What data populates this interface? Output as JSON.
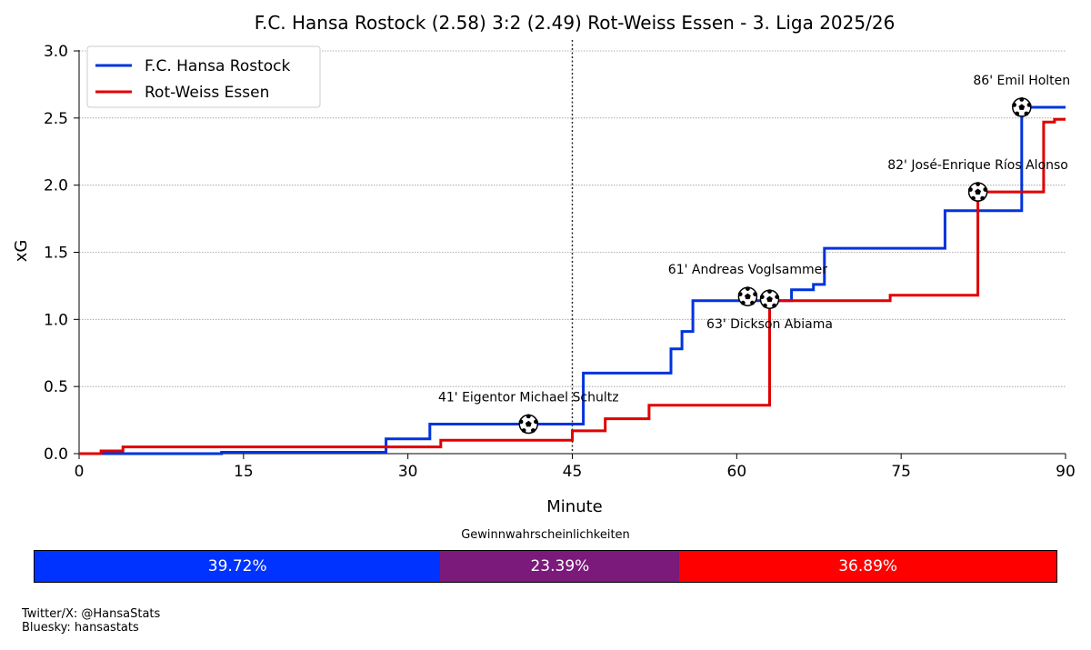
{
  "chart_data": {
    "type": "line",
    "step": true,
    "title": "F.C. Hansa Rostock (2.58) 3:2 (2.49) Rot-Weiss Essen - 3. Liga 2025/26",
    "xlabel": "Minute",
    "ylabel": "xG",
    "xlim": [
      0,
      90
    ],
    "ylim": [
      0,
      3.0
    ],
    "xticks": [
      0,
      15,
      30,
      45,
      60,
      75,
      90
    ],
    "yticks": [
      0.0,
      0.5,
      1.0,
      1.5,
      2.0,
      2.5,
      3.0
    ],
    "xtick_labels": [
      "0",
      "15",
      "30",
      "45",
      "60",
      "75",
      "90"
    ],
    "ytick_labels": [
      "0.0",
      "0.5",
      "1.0",
      "1.5",
      "2.0",
      "2.5",
      "3.0"
    ],
    "grid": "horizontal dotted",
    "halftime_line": 45,
    "legend_position": "top-left",
    "series": [
      {
        "name": "F.C. Hansa Rostock",
        "color": "#0033dd",
        "points": [
          [
            0,
            0
          ],
          [
            13,
            0
          ],
          [
            13,
            0.01
          ],
          [
            28,
            0.01
          ],
          [
            28,
            0.11
          ],
          [
            32,
            0.11
          ],
          [
            32,
            0.22
          ],
          [
            46,
            0.22
          ],
          [
            46,
            0.6
          ],
          [
            54,
            0.6
          ],
          [
            54,
            0.78
          ],
          [
            55,
            0.78
          ],
          [
            55,
            0.91
          ],
          [
            56,
            0.91
          ],
          [
            56,
            1.14
          ],
          [
            65,
            1.14
          ],
          [
            65,
            1.22
          ],
          [
            67,
            1.22
          ],
          [
            67,
            1.26
          ],
          [
            68,
            1.26
          ],
          [
            68,
            1.53
          ],
          [
            79,
            1.53
          ],
          [
            79,
            1.81
          ],
          [
            86,
            1.81
          ],
          [
            86,
            2.58
          ],
          [
            90,
            2.58
          ]
        ]
      },
      {
        "name": "Rot-Weiss Essen",
        "color": "#e00000",
        "points": [
          [
            0,
            0
          ],
          [
            2,
            0
          ],
          [
            2,
            0.02
          ],
          [
            4,
            0.02
          ],
          [
            4,
            0.05
          ],
          [
            33,
            0.05
          ],
          [
            33,
            0.1
          ],
          [
            45,
            0.1
          ],
          [
            45,
            0.17
          ],
          [
            48,
            0.17
          ],
          [
            48,
            0.26
          ],
          [
            52,
            0.26
          ],
          [
            52,
            0.36
          ],
          [
            63,
            0.36
          ],
          [
            63,
            1.14
          ],
          [
            74,
            1.14
          ],
          [
            74,
            1.18
          ],
          [
            82,
            1.18
          ],
          [
            82,
            1.95
          ],
          [
            88,
            1.95
          ],
          [
            88,
            2.47
          ],
          [
            89,
            2.47
          ],
          [
            89,
            2.49
          ],
          [
            90,
            2.49
          ]
        ]
      }
    ],
    "goals": [
      {
        "minute": 41,
        "xg": 0.22,
        "label": "41' Eigentor Michael Schultz",
        "label_pos": "above"
      },
      {
        "minute": 61,
        "xg": 1.17,
        "label": "61' Andreas Voglsammer",
        "label_pos": "above"
      },
      {
        "minute": 63,
        "xg": 1.15,
        "label": "63' Dickson Abiama",
        "label_pos": "below"
      },
      {
        "minute": 82,
        "xg": 1.95,
        "label": "82' José-Enrique Ríos Alonso",
        "label_pos": "above"
      },
      {
        "minute": 86,
        "xg": 2.58,
        "label": "86' Emil Holten",
        "label_pos": "above"
      }
    ]
  },
  "win_probabilities": {
    "title": "Gewinnwahrscheinlichkeiten",
    "segments": [
      {
        "label": "39.72%",
        "value": 39.72,
        "color": "#0033ff"
      },
      {
        "label": "23.39%",
        "value": 23.39,
        "color": "#7b1a7b"
      },
      {
        "label": "36.89%",
        "value": 36.89,
        "color": "#ff0000"
      }
    ]
  },
  "footer": {
    "twitter": "Twitter/X: @HansaStats",
    "bluesky": "Bluesky: hansastats"
  }
}
